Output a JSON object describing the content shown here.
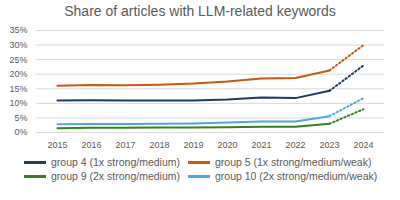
{
  "chart_data": {
    "type": "line",
    "title": "Share of articles with LLM-related keywords",
    "categories": [
      "2015",
      "2016",
      "2017",
      "2018",
      "2019",
      "2020",
      "2021",
      "2022",
      "2023",
      "2024"
    ],
    "series": [
      {
        "name": "group 4 (1x strong/medium)",
        "color": "#1f3864",
        "line_style": "solid",
        "values": [
          11,
          11.1,
          11,
          11,
          11,
          11.3,
          12,
          11.8,
          14.3,
          23
        ]
      },
      {
        "name": "group 5 (1x strong/medium/weak)",
        "color": "#c55a11",
        "line_style": "solid",
        "values": [
          16,
          16.3,
          16.2,
          16.4,
          16.8,
          17.5,
          18.5,
          18.7,
          21.3,
          30
        ]
      },
      {
        "name": "group 9 (2x strong/medium)",
        "color": "#3a7d22",
        "line_style": "solid",
        "values": [
          1.5,
          1.6,
          1.6,
          1.7,
          1.7,
          1.8,
          2,
          2,
          3,
          8
        ]
      },
      {
        "name": "group 10 (2x strong/medium/weak)",
        "color": "#4ea6dc",
        "line_style": "solid",
        "values": [
          2.8,
          2.9,
          2.9,
          3,
          3.1,
          3.4,
          3.8,
          3.8,
          5.6,
          11.8
        ]
      }
    ],
    "ylim": [
      0,
      35
    ],
    "yticks": [
      {
        "value": 0,
        "label": "0%"
      },
      {
        "value": 5,
        "label": "5%"
      },
      {
        "value": 10,
        "label": "10%"
      },
      {
        "value": 15,
        "label": "15%"
      },
      {
        "value": 20,
        "label": "20%"
      },
      {
        "value": 25,
        "label": "25%"
      },
      {
        "value": 30,
        "label": "30%"
      },
      {
        "value": 35,
        "label": "35%"
      }
    ],
    "grid": true,
    "legend": "bottom"
  }
}
